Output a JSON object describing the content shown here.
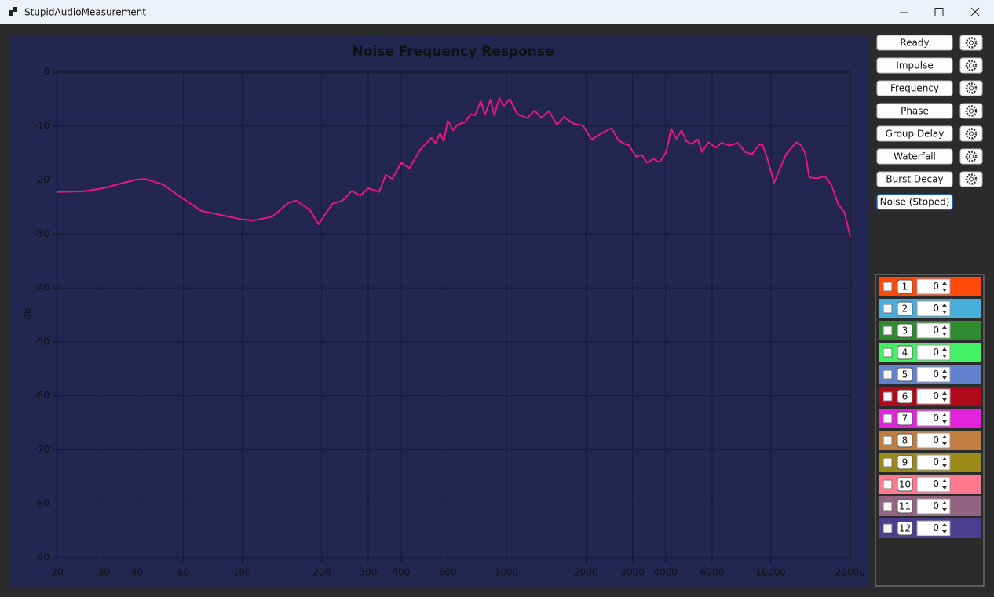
{
  "window": {
    "title": "StupidAudioMeasurement"
  },
  "buttons": [
    "Ready",
    "Impulse",
    "Frequency",
    "Phase",
    "Group Delay",
    "Waterfall",
    "Burst Decay"
  ],
  "noise_button": "Noise (Stoped)",
  "channels": [
    {
      "label": "1",
      "value": 0,
      "color": "#ff4a0a"
    },
    {
      "label": "2",
      "value": 0,
      "color": "#4aaedc"
    },
    {
      "label": "3",
      "value": 0,
      "color": "#2f8c30"
    },
    {
      "label": "4",
      "value": 0,
      "color": "#40f264"
    },
    {
      "label": "5",
      "value": 0,
      "color": "#6282d0"
    },
    {
      "label": "6",
      "value": 0,
      "color": "#b00a1a"
    },
    {
      "label": "7",
      "value": 0,
      "color": "#e424dc"
    },
    {
      "label": "8",
      "value": 0,
      "color": "#c27e40"
    },
    {
      "label": "9",
      "value": 0,
      "color": "#9a8a18"
    },
    {
      "label": "10",
      "value": 0,
      "color": "#ff7a8c"
    },
    {
      "label": "11",
      "value": 0,
      "color": "#926482"
    },
    {
      "label": "12",
      "value": 0,
      "color": "#4c3e8e"
    }
  ],
  "chart_data": {
    "type": "line",
    "title": "Noise Frequency Response",
    "y_label": "dB",
    "log_x": true,
    "grid": true,
    "color": "#e8197c",
    "xlim": [
      20,
      20000
    ],
    "ylim": [
      -90,
      0
    ],
    "xticks": [
      20,
      30,
      40,
      60,
      100,
      200,
      300,
      400,
      600,
      1000,
      2000,
      3000,
      4000,
      6000,
      10000,
      20000
    ],
    "yticks": [
      0,
      -10,
      -20,
      -30,
      -40,
      -50,
      -60,
      -70,
      -80,
      -90
    ],
    "x": [
      20,
      25,
      30,
      35,
      40,
      43,
      50,
      60,
      70,
      80,
      100,
      110,
      130,
      150,
      160,
      180,
      195,
      205,
      220,
      240,
      260,
      280,
      300,
      330,
      350,
      370,
      400,
      430,
      470,
      520,
      540,
      560,
      580,
      600,
      630,
      650,
      700,
      730,
      760,
      800,
      830,
      870,
      900,
      940,
      980,
      1030,
      1100,
      1200,
      1280,
      1350,
      1450,
      1550,
      1650,
      1800,
      1950,
      2100,
      2300,
      2500,
      2650,
      2800,
      2900,
      3100,
      3250,
      3400,
      3600,
      3800,
      4000,
      4100,
      4200,
      4400,
      4600,
      4800,
      5000,
      5300,
      5500,
      5800,
      6200,
      6500,
      7000,
      7500,
      8000,
      8500,
      9000,
      9300,
      9700,
      10300,
      10800,
      11500,
      12500,
      13000,
      13500,
      14000,
      15000,
      16000,
      17000,
      18000,
      19000,
      20000
    ],
    "values": [
      -22.2,
      -22.1,
      -21.5,
      -20.6,
      -19.9,
      -19.8,
      -20.8,
      -23.5,
      -25.7,
      -26.3,
      -27.3,
      -27.5,
      -26.8,
      -24.2,
      -23.8,
      -25.5,
      -28.2,
      -26.5,
      -24.4,
      -23.8,
      -22.0,
      -22.9,
      -21.5,
      -22.2,
      -19.0,
      -19.8,
      -16.8,
      -17.8,
      -14.5,
      -12.2,
      -13.2,
      -11.3,
      -12.8,
      -9.0,
      -10.8,
      -9.8,
      -9.2,
      -7.8,
      -8.0,
      -5.4,
      -7.9,
      -5.1,
      -8.0,
      -4.8,
      -6.2,
      -5.0,
      -7.8,
      -8.5,
      -7.1,
      -8.5,
      -7.2,
      -9.8,
      -8.3,
      -9.6,
      -9.9,
      -12.5,
      -11.3,
      -10.4,
      -12.6,
      -13.3,
      -13.5,
      -15.7,
      -15.3,
      -16.8,
      -16.1,
      -16.7,
      -15.0,
      -13.0,
      -10.5,
      -12.4,
      -10.8,
      -12.8,
      -13.3,
      -12.5,
      -14.8,
      -13.0,
      -14.0,
      -13.1,
      -13.6,
      -13.1,
      -14.8,
      -15.2,
      -13.5,
      -13.4,
      -16.0,
      -20.5,
      -18.0,
      -15.0,
      -13.0,
      -13.5,
      -15.0,
      -19.5,
      -19.7,
      -19.3,
      -21.0,
      -24.5,
      -26.0,
      -30.5
    ]
  }
}
